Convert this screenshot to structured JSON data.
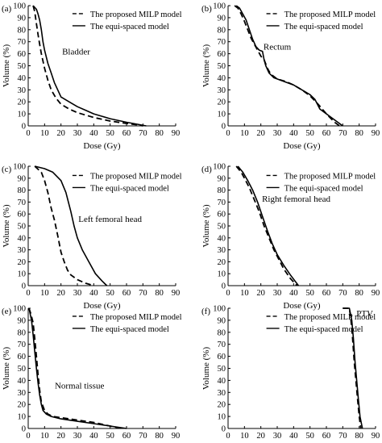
{
  "chart_data": [
    {
      "type": "line",
      "panel_label": "(a)",
      "annotation": "Bladder",
      "xlabel": "Dose (Gy)",
      "ylabel": "Volume (%)",
      "xlim": [
        0,
        90
      ],
      "ylim": [
        0,
        100
      ],
      "xticks": [
        "0",
        "10",
        "20",
        "30",
        "40",
        "50",
        "60",
        "70",
        "80",
        "90"
      ],
      "yticks": [
        "0",
        "10",
        "20",
        "30",
        "40",
        "50",
        "60",
        "70",
        "80",
        "90",
        "100"
      ],
      "legend_position": "top-right",
      "series": [
        {
          "name": "The proposed MILP model",
          "style": "dashed",
          "x": [
            3,
            4,
            5,
            6,
            7,
            8,
            10,
            12,
            14,
            17,
            20,
            25,
            30,
            40,
            50,
            60,
            66,
            70
          ],
          "y": [
            100,
            95,
            85,
            76,
            68,
            60,
            48,
            38,
            30,
            23,
            18,
            14,
            11,
            7,
            4,
            2,
            1,
            0
          ]
        },
        {
          "name": "The equi-spaced model",
          "style": "solid",
          "x": [
            3,
            5,
            6,
            7,
            8,
            9,
            10,
            12,
            14,
            16,
            18,
            20,
            25,
            30,
            35,
            40,
            50,
            60,
            72
          ],
          "y": [
            100,
            97,
            93,
            88,
            80,
            70,
            63,
            52,
            44,
            36,
            30,
            24,
            20,
            16,
            13,
            10,
            6,
            3,
            0
          ]
        }
      ]
    },
    {
      "type": "line",
      "panel_label": "(b)",
      "annotation": "Rectum",
      "xlabel": "Dose (Gy)",
      "ylabel": "Volume (%)",
      "xlim": [
        0,
        90
      ],
      "ylim": [
        0,
        100
      ],
      "xticks": [
        "0",
        "10",
        "20",
        "30",
        "40",
        "50",
        "60",
        "70",
        "80",
        "90"
      ],
      "yticks": [
        "0",
        "10",
        "20",
        "30",
        "40",
        "50",
        "60",
        "70",
        "80",
        "90",
        "100"
      ],
      "legend_position": "top-right",
      "series": [
        {
          "name": "The proposed MILP model",
          "style": "dashed",
          "x": [
            4,
            6,
            8,
            10,
            12,
            14,
            16,
            18,
            20,
            22,
            24,
            26,
            30,
            35,
            40,
            45,
            50,
            55,
            60,
            65,
            68
          ],
          "y": [
            100,
            98,
            93,
            87,
            80,
            73,
            68,
            63,
            58,
            55,
            48,
            43,
            39,
            37,
            34,
            30,
            25,
            18,
            10,
            3,
            0
          ]
        },
        {
          "name": "The equi-spaced model",
          "style": "solid",
          "x": [
            5,
            7,
            9,
            11,
            13,
            15,
            17,
            19,
            21,
            22,
            23,
            25,
            28,
            32,
            36,
            40,
            45,
            50,
            53,
            56,
            60,
            65,
            70
          ],
          "y": [
            100,
            98,
            93,
            88,
            80,
            72,
            66,
            63,
            62,
            55,
            50,
            44,
            40,
            38,
            36,
            34,
            30,
            26,
            22,
            14,
            10,
            5,
            0
          ]
        }
      ]
    },
    {
      "type": "line",
      "panel_label": "(c)",
      "annotation": "Left femoral head",
      "xlabel": "Dose (Gy)",
      "ylabel": "Volume (%)",
      "xlim": [
        0,
        90
      ],
      "ylim": [
        0,
        100
      ],
      "xticks": [
        "0",
        "10",
        "20",
        "30",
        "40",
        "50",
        "60",
        "70",
        "80",
        "90"
      ],
      "yticks": [
        "0",
        "10",
        "20",
        "30",
        "40",
        "50",
        "60",
        "70",
        "80",
        "90",
        "100"
      ],
      "legend_position": "top-right",
      "series": [
        {
          "name": "The proposed MILP model",
          "style": "dashed",
          "x": [
            4,
            8,
            10,
            12,
            14,
            16,
            18,
            20,
            22,
            24,
            26,
            30,
            35,
            40
          ],
          "y": [
            100,
            95,
            88,
            78,
            65,
            55,
            42,
            28,
            20,
            13,
            9,
            5,
            2,
            0
          ]
        },
        {
          "name": "The equi-spaced model",
          "style": "solid",
          "x": [
            4,
            10,
            15,
            20,
            23,
            26,
            28,
            30,
            33,
            37,
            41,
            45,
            48
          ],
          "y": [
            100,
            98,
            95,
            88,
            78,
            62,
            50,
            40,
            30,
            20,
            10,
            4,
            0
          ]
        }
      ]
    },
    {
      "type": "line",
      "panel_label": "(d)",
      "annotation": "Right femoral head",
      "xlabel": "Dose (Gy)",
      "ylabel": "Volume (%)",
      "xlim": [
        0,
        90
      ],
      "ylim": [
        0,
        100
      ],
      "xticks": [
        "0",
        "10",
        "20",
        "30",
        "40",
        "50",
        "60",
        "70",
        "80",
        "90"
      ],
      "yticks": [
        "0",
        "10",
        "20",
        "30",
        "40",
        "50",
        "60",
        "70",
        "80",
        "90",
        "100"
      ],
      "legend_position": "top-right",
      "series": [
        {
          "name": "The proposed MILP model",
          "style": "dashed",
          "x": [
            5,
            8,
            10,
            13,
            16,
            19,
            22,
            25,
            28,
            31,
            34,
            38,
            42
          ],
          "y": [
            100,
            95,
            90,
            82,
            72,
            62,
            50,
            40,
            30,
            22,
            14,
            6,
            0
          ]
        },
        {
          "name": "The equi-spaced model",
          "style": "solid",
          "x": [
            6,
            9,
            12,
            15,
            18,
            21,
            24,
            27,
            30,
            34,
            38,
            43
          ],
          "y": [
            100,
            95,
            88,
            80,
            70,
            58,
            46,
            35,
            26,
            17,
            9,
            0
          ]
        }
      ]
    },
    {
      "type": "line",
      "panel_label": "(e)",
      "annotation": "Normal tissue",
      "xlabel": "Dose (Gy)",
      "ylabel": "Volume (%)",
      "xlim": [
        0,
        90
      ],
      "ylim": [
        0,
        100
      ],
      "xticks": [
        "0",
        "10",
        "20",
        "30",
        "40",
        "50",
        "60",
        "70",
        "80",
        "90"
      ],
      "yticks": [
        "0",
        "10",
        "20",
        "30",
        "40",
        "50",
        "60",
        "70",
        "80",
        "90",
        "100"
      ],
      "legend_position": "top-right",
      "series": [
        {
          "name": "The proposed MILP model",
          "style": "dashed",
          "x": [
            0.5,
            1.5,
            3,
            4,
            5,
            6,
            7,
            8,
            10,
            12,
            15,
            20,
            25,
            30,
            40,
            50,
            57
          ],
          "y": [
            100,
            96,
            88,
            75,
            60,
            45,
            32,
            22,
            15,
            12,
            10,
            9,
            8,
            7,
            5,
            2,
            0
          ]
        },
        {
          "name": "The equi-spaced model",
          "style": "solid",
          "x": [
            0.5,
            2,
            3,
            4,
            5,
            6,
            7,
            8,
            9,
            11,
            14,
            20,
            30,
            40,
            50,
            60
          ],
          "y": [
            100,
            90,
            78,
            64,
            50,
            38,
            28,
            20,
            15,
            12,
            10,
            8,
            6,
            4,
            2,
            0
          ]
        }
      ]
    },
    {
      "type": "line",
      "panel_label": "(f)",
      "annotation": "PTV",
      "xlabel": "Dose (Gy)",
      "ylabel": "Volume (%)",
      "xlim": [
        0,
        90
      ],
      "ylim": [
        0,
        100
      ],
      "xticks": [
        "0",
        "10",
        "20",
        "30",
        "40",
        "50",
        "60",
        "70",
        "80",
        "90"
      ],
      "yticks": [
        "0",
        "10",
        "20",
        "30",
        "40",
        "50",
        "60",
        "70",
        "80",
        "90",
        "100"
      ],
      "legend_position": "top-right",
      "series": [
        {
          "name": "The proposed MILP model",
          "style": "dashed",
          "x": [
            70,
            74,
            75,
            76,
            77,
            78,
            79,
            80,
            81
          ],
          "y": [
            100,
            100,
            90,
            75,
            55,
            40,
            25,
            10,
            0
          ]
        },
        {
          "name": "The equi-spaced model",
          "style": "solid",
          "x": [
            70,
            74,
            75.5,
            76.5,
            77.5,
            78.5,
            79.5,
            80.5,
            82
          ],
          "y": [
            100,
            100,
            90,
            75,
            55,
            40,
            25,
            10,
            0
          ]
        }
      ]
    }
  ]
}
